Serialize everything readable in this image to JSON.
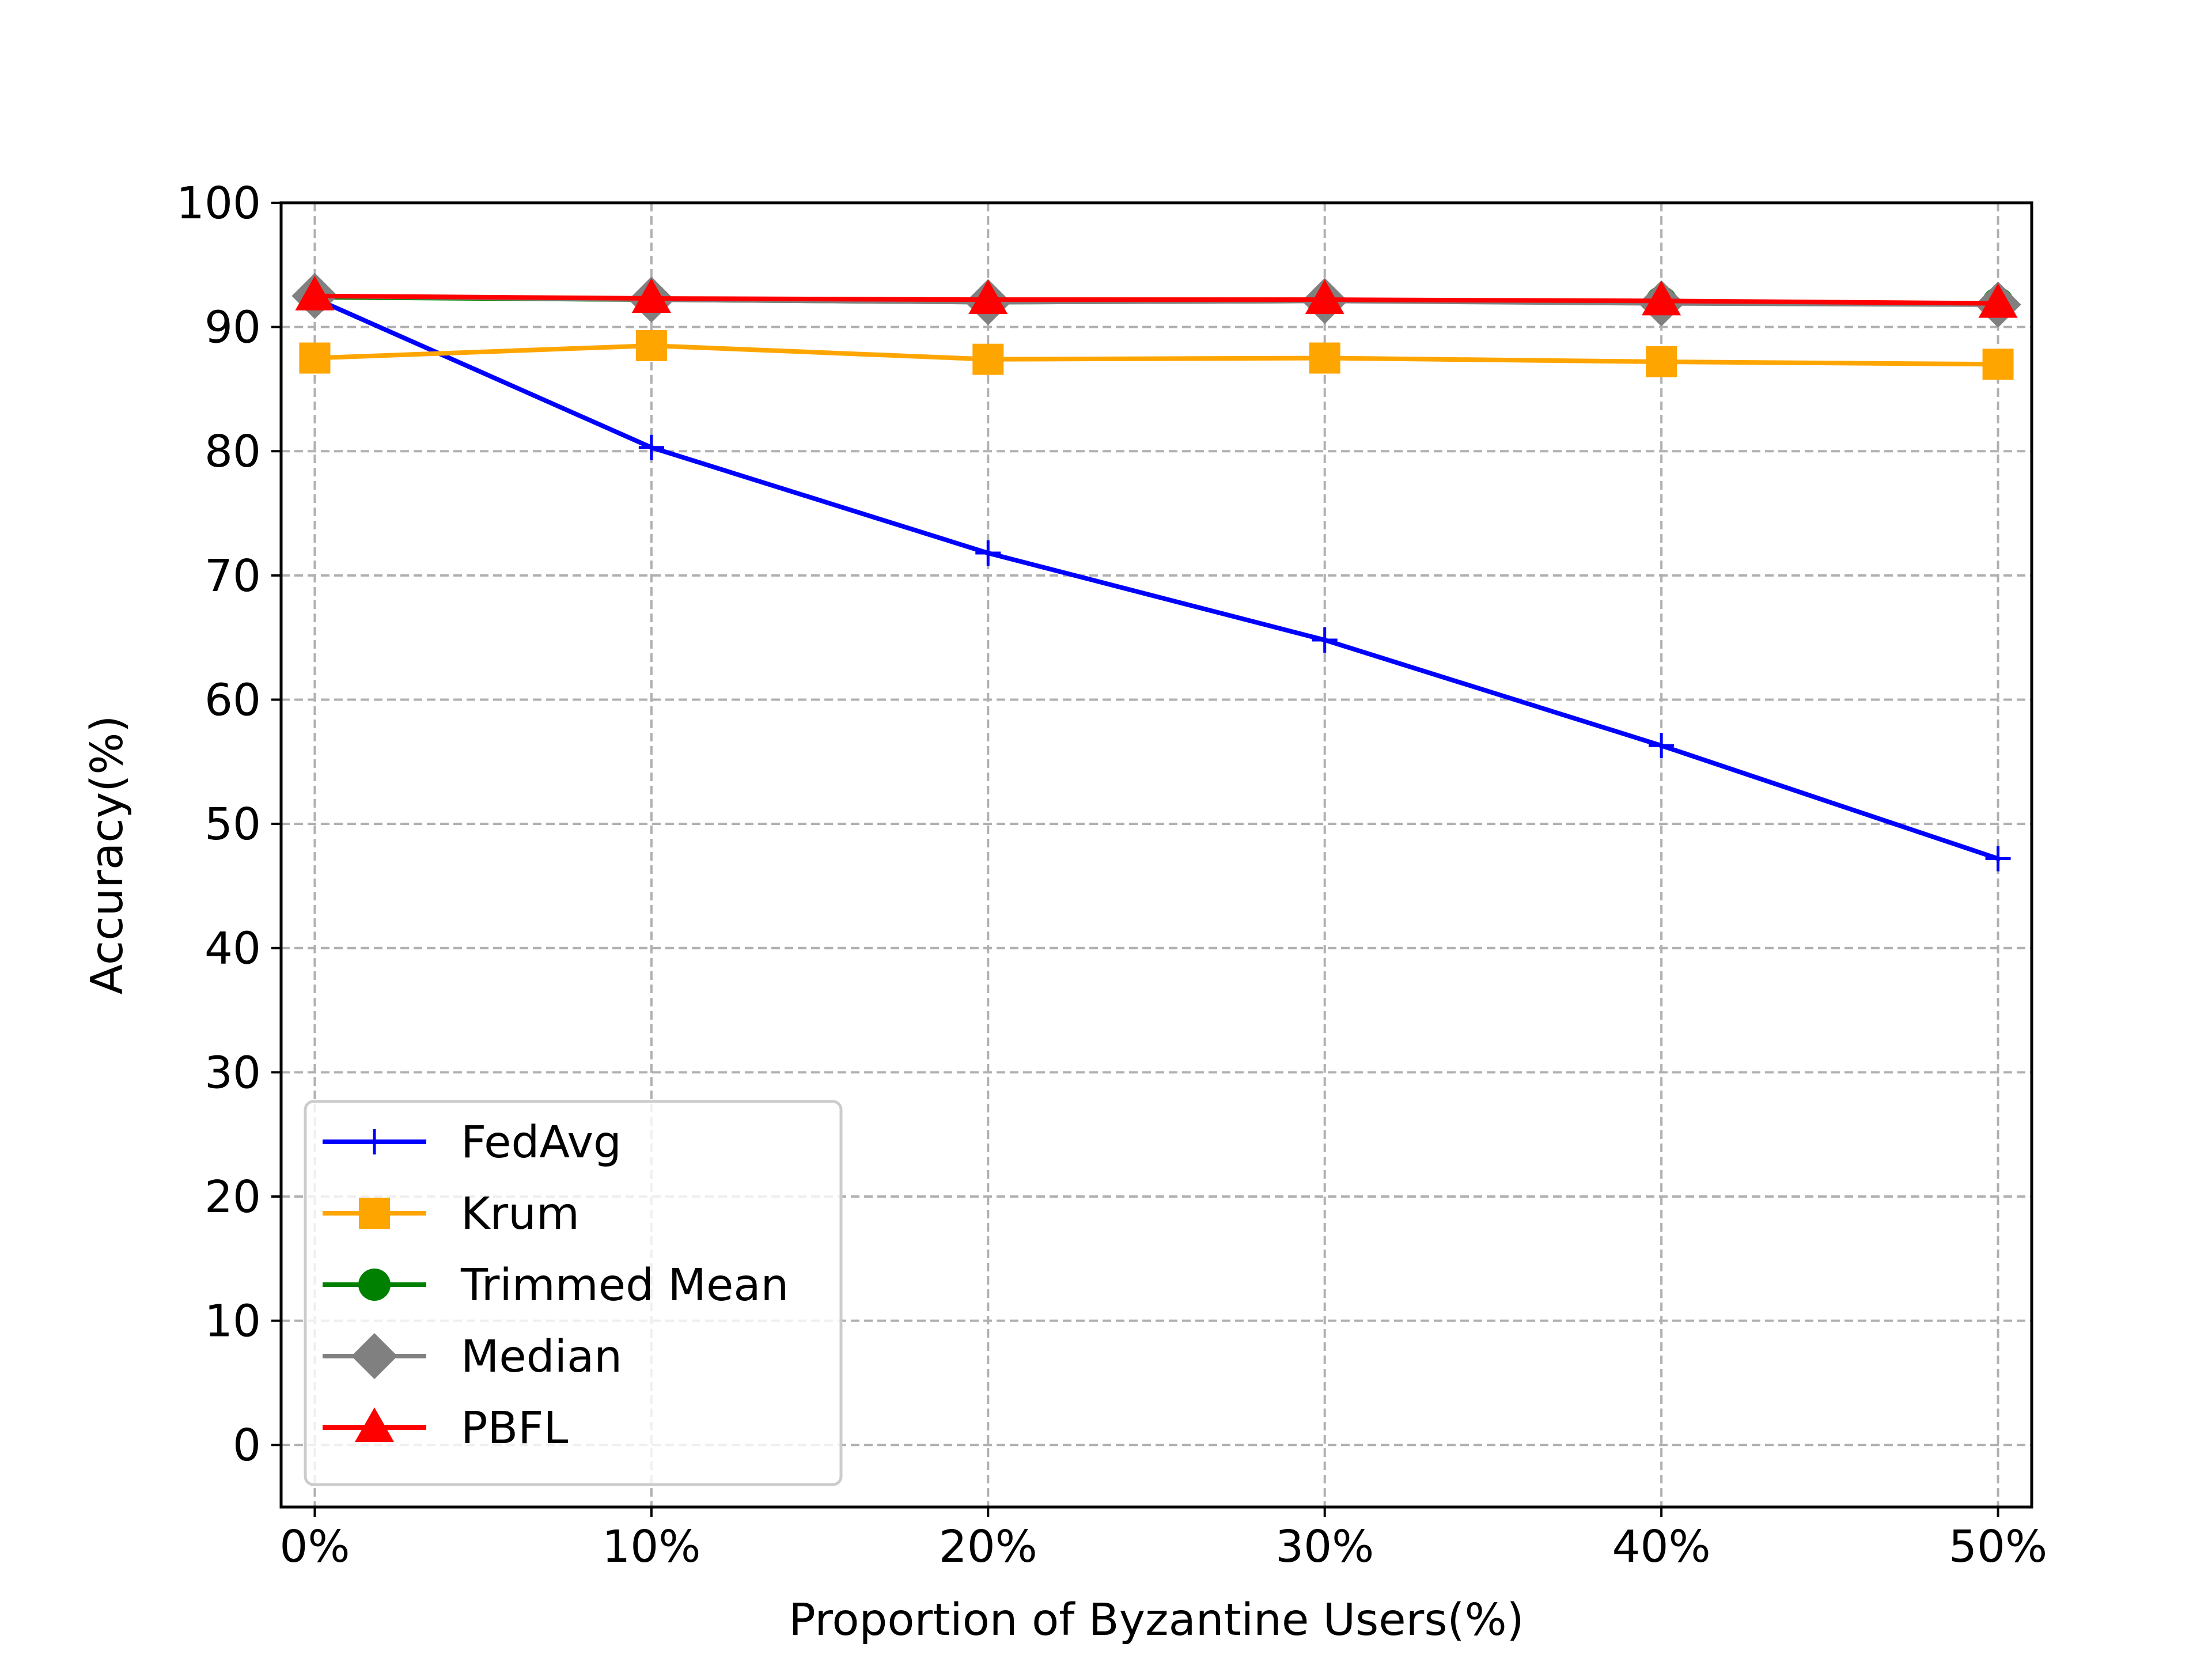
{
  "chart_data": {
    "type": "line",
    "title": "",
    "xlabel": "Proportion of Byzantine Users(%)",
    "ylabel": "Accuracy(%)",
    "categories": [
      "0%",
      "10%",
      "20%",
      "30%",
      "40%",
      "50%"
    ],
    "x": [
      0,
      10,
      20,
      30,
      40,
      50
    ],
    "xlim": [
      -1,
      51
    ],
    "ylim": [
      -5,
      100
    ],
    "yticks": [
      0,
      10,
      20,
      30,
      40,
      50,
      60,
      70,
      80,
      90,
      100
    ],
    "grid": true,
    "grid_style": "dashed",
    "legend_position": "lower-left",
    "series": [
      {
        "name": "FedAvg",
        "color": "#0000ff",
        "marker": "plus",
        "values": [
          92.3,
          80.3,
          71.8,
          64.8,
          56.3,
          47.2
        ]
      },
      {
        "name": "Krum",
        "color": "#ffa500",
        "marker": "square",
        "values": [
          87.5,
          88.5,
          87.4,
          87.5,
          87.2,
          87.0
        ]
      },
      {
        "name": "Trimmed Mean",
        "color": "#008000",
        "marker": "circle",
        "values": [
          92.4,
          92.2,
          92.0,
          92.1,
          92.0,
          91.9
        ]
      },
      {
        "name": "Median",
        "color": "#808080",
        "marker": "diamond",
        "values": [
          92.5,
          92.2,
          92.0,
          92.1,
          91.9,
          91.8
        ]
      },
      {
        "name": "PBFL",
        "color": "#ff0000",
        "marker": "triangle",
        "values": [
          92.5,
          92.3,
          92.2,
          92.2,
          92.1,
          91.9
        ]
      }
    ]
  }
}
